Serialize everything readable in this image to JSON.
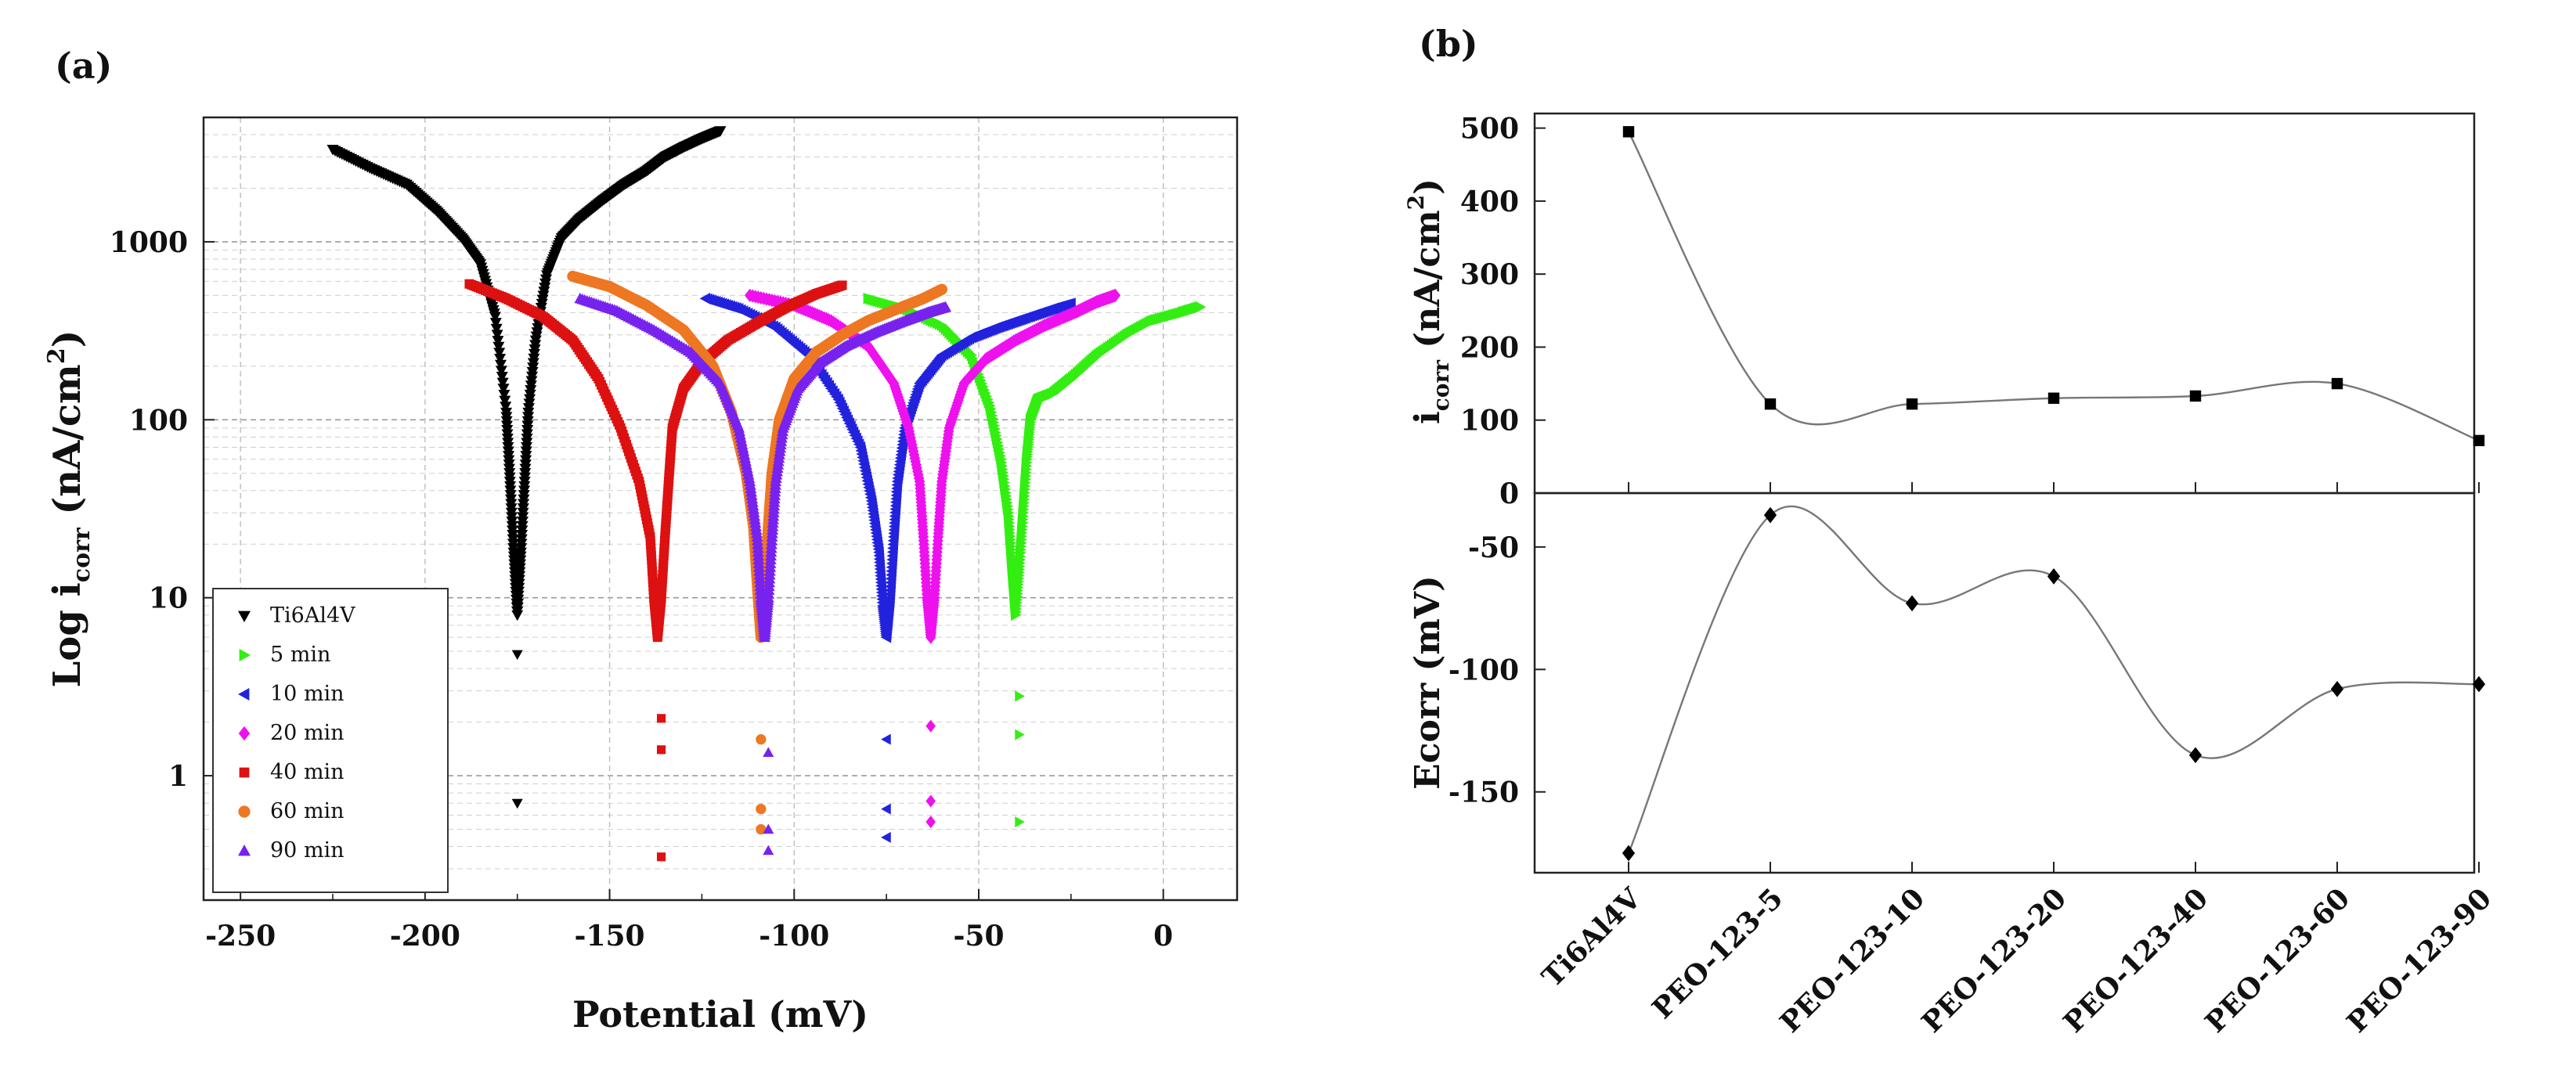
{
  "chart_data": [
    {
      "panel": "(a)",
      "type": "scatter",
      "xlabel": "Potential (mV)",
      "ylabel_parts": [
        "Log i",
        "corr",
        " (nA/cm",
        "2",
        ")"
      ],
      "xlim": [
        -260,
        20
      ],
      "ylim": [
        0.2,
        5000
      ],
      "yscale": "log",
      "xticks": [
        -250,
        -200,
        -150,
        -100,
        -50,
        0
      ],
      "yticks": [
        1,
        10,
        100,
        1000
      ],
      "grid": true,
      "legend_position": "bottom-left",
      "series": [
        {
          "name": "Ti6Al4V",
          "color": "#000000",
          "marker": "triangle-down",
          "x": [
            -225,
            -215,
            -205,
            -197,
            -190,
            -185,
            -181,
            -178,
            -177,
            -176,
            -175,
            -174,
            -173,
            -172,
            -170,
            -167,
            -163,
            -158,
            -152,
            -146,
            -140,
            -135,
            -130,
            -125,
            -120
          ],
          "y": [
            3300,
            2600,
            2100,
            1500,
            1050,
            750,
            380,
            110,
            45,
            18,
            8,
            18,
            45,
            110,
            280,
            650,
            1050,
            1350,
            1700,
            2100,
            2500,
            3000,
            3400,
            3800,
            4200
          ],
          "low_points": [
            [
              -175,
              0.7
            ],
            [
              -175,
              4.8
            ],
            [
              -175,
              9
            ]
          ]
        },
        {
          "name": "5 min",
          "color": "#33ee11",
          "marker": "triangle-right",
          "x": [
            -80,
            -70,
            -60,
            -52,
            -47,
            -44,
            -42,
            -41,
            -40,
            -39,
            -38,
            -37,
            -36,
            -34,
            -30,
            -25,
            -18,
            -10,
            -3,
            5,
            10
          ],
          "y": [
            480,
            420,
            340,
            230,
            120,
            60,
            30,
            15,
            8,
            15,
            30,
            60,
            100,
            130,
            140,
            170,
            230,
            300,
            360,
            400,
            430
          ],
          "low_points": [
            [
              -39,
              0.55
            ],
            [
              -39,
              1.7
            ],
            [
              -39,
              2.8
            ]
          ]
        },
        {
          "name": "10 min",
          "color": "#2222dd",
          "marker": "triangle-left",
          "x": [
            -124,
            -115,
            -105,
            -96,
            -88,
            -82,
            -79,
            -77,
            -76,
            -75,
            -74,
            -73,
            -72,
            -70,
            -66,
            -60,
            -52,
            -45,
            -38,
            -30,
            -25
          ],
          "y": [
            480,
            420,
            330,
            230,
            130,
            70,
            35,
            18,
            9,
            6,
            10,
            22,
            45,
            90,
            160,
            230,
            290,
            330,
            370,
            420,
            450
          ],
          "low_points": [
            [
              -75,
              0.45
            ],
            [
              -75,
              0.65
            ],
            [
              -75,
              1.6
            ]
          ]
        },
        {
          "name": "20 min",
          "color": "#ee11ee",
          "marker": "diamond",
          "x": [
            -112,
            -100,
            -90,
            -80,
            -73,
            -69,
            -66,
            -65,
            -64,
            -63,
            -62,
            -61,
            -60,
            -58,
            -54,
            -48,
            -40,
            -32,
            -24,
            -18,
            -13
          ],
          "y": [
            500,
            440,
            360,
            260,
            160,
            90,
            45,
            22,
            10,
            6,
            10,
            22,
            45,
            90,
            160,
            220,
            280,
            340,
            400,
            460,
            500
          ],
          "low_points": [
            [
              -63,
              0.55
            ],
            [
              -63,
              0.72
            ],
            [
              -63,
              1.9
            ]
          ]
        },
        {
          "name": "40 min",
          "color": "#dd1111",
          "marker": "square",
          "x": [
            -188,
            -178,
            -168,
            -160,
            -153,
            -147,
            -142,
            -139,
            -138,
            -137,
            -136,
            -135,
            -134,
            -133,
            -130,
            -125,
            -118,
            -110,
            -102,
            -94,
            -87
          ],
          "y": [
            580,
            480,
            380,
            280,
            170,
            90,
            45,
            22,
            10,
            6,
            10,
            22,
            45,
            90,
            150,
            210,
            280,
            350,
            430,
            510,
            570
          ],
          "low_points": [
            [
              -136,
              0.35
            ],
            [
              -136,
              1.4
            ],
            [
              -136,
              2.1
            ]
          ]
        },
        {
          "name": "60 min",
          "color": "#ee7722",
          "marker": "circle",
          "x": [
            -160,
            -150,
            -140,
            -130,
            -122,
            -117,
            -113,
            -111,
            -110,
            -109,
            -108,
            -107,
            -106,
            -104,
            -100,
            -94,
            -87,
            -80,
            -72,
            -65,
            -60
          ],
          "y": [
            640,
            560,
            440,
            320,
            200,
            110,
            50,
            25,
            12,
            6,
            12,
            25,
            50,
            100,
            170,
            240,
            300,
            360,
            420,
            480,
            540
          ],
          "low_points": [
            [
              -109,
              0.5
            ],
            [
              -109,
              0.65
            ],
            [
              -109,
              1.6
            ]
          ]
        },
        {
          "name": "90 min",
          "color": "#7722ee",
          "marker": "triangle-up",
          "x": [
            -158,
            -148,
            -138,
            -128,
            -120,
            -115,
            -112,
            -110,
            -109,
            -108,
            -107,
            -106,
            -105,
            -103,
            -99,
            -93,
            -86,
            -78,
            -70,
            -64,
            -59
          ],
          "y": [
            480,
            410,
            320,
            240,
            160,
            90,
            45,
            22,
            10,
            6,
            10,
            22,
            45,
            90,
            150,
            210,
            260,
            310,
            360,
            400,
            430
          ],
          "low_points": [
            [
              -107,
              0.38
            ],
            [
              -107,
              0.5
            ],
            [
              -107,
              1.35
            ]
          ]
        }
      ]
    },
    {
      "panel": "(b)",
      "type": "line",
      "categories": [
        "Ti6Al4V",
        "PEO-123-5",
        "PEO-123-10",
        "PEO-123-20",
        "PEO-123-40",
        "PEO-123-60",
        "PEO-123-90"
      ],
      "series": [
        {
          "name": "icorr",
          "marker": "square",
          "values": [
            495,
            122,
            122,
            130,
            133,
            150,
            72
          ],
          "ylabel_parts": [
            "i",
            "corr",
            " (nA/cm",
            "2",
            ")"
          ],
          "ylim": [
            0,
            520
          ],
          "yticks": [
            0,
            100,
            200,
            300,
            400,
            500
          ]
        },
        {
          "name": "Ecorr",
          "marker": "diamond",
          "values": [
            -175,
            -37,
            -73,
            -62,
            -135,
            -108,
            -106
          ],
          "ylabel": "Ecorr (mV)",
          "ylim": [
            -183,
            -28
          ],
          "yticks": [
            -50,
            -100,
            -150
          ]
        }
      ]
    }
  ]
}
